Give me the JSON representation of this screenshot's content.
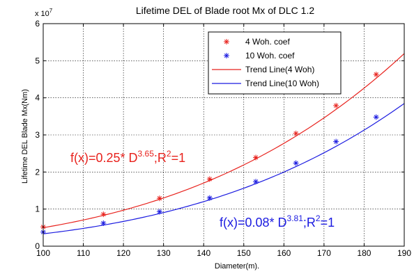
{
  "chart_data": {
    "type": "line",
    "title": "Lifetime DEL of Blade root Mx of DLC 1.2",
    "xlabel": "Diameter(m).",
    "ylabel": "Lifetime DEL Blade Mx(Nm)",
    "y_exponent": "x 10",
    "y_exponent_power": "7",
    "xlim": [
      100,
      190
    ],
    "ylim": [
      0,
      6
    ],
    "x_ticks": [
      100,
      110,
      120,
      130,
      140,
      150,
      160,
      170,
      180,
      190
    ],
    "y_ticks": [
      0,
      1,
      2,
      3,
      4,
      5,
      6
    ],
    "grid": true,
    "legend_position": "top-right",
    "series": [
      {
        "name": "4 Woh. coef",
        "kind": "scatter",
        "marker": "*",
        "color": "#e8221d",
        "x": [
          100,
          115,
          129,
          141.5,
          153,
          163,
          173,
          183
        ],
        "y": [
          0.52,
          0.86,
          1.29,
          1.81,
          2.39,
          3.04,
          3.79,
          4.63
        ]
      },
      {
        "name": "10 Woh. coef",
        "kind": "scatter",
        "marker": "*",
        "color": "#1a1ae0",
        "x": [
          100,
          115,
          129,
          141.5,
          153,
          163,
          173,
          183
        ],
        "y": [
          0.38,
          0.62,
          0.93,
          1.3,
          1.74,
          2.24,
          2.82,
          3.48
        ]
      },
      {
        "name": "Trend Line(4 Woh)",
        "kind": "line",
        "color": "#e8221d",
        "coef": 0.25,
        "exponent": 3.65
      },
      {
        "name": "Trend Line(10 Woh)",
        "kind": "line",
        "color": "#1a1ae0",
        "coef": 0.08,
        "exponent": 3.81
      }
    ],
    "annotations": [
      {
        "color": "#e8221d",
        "prefix": "f(x)=0.25* D",
        "sup1": "3.65",
        "mid": ";R",
        "sup2": "2",
        "suffix": "=1"
      },
      {
        "color": "#1a1ae0",
        "prefix": "f(x)=0.08* D",
        "sup1": "3.81",
        "mid": ";R",
        "sup2": "2",
        "suffix": "=1"
      }
    ]
  }
}
